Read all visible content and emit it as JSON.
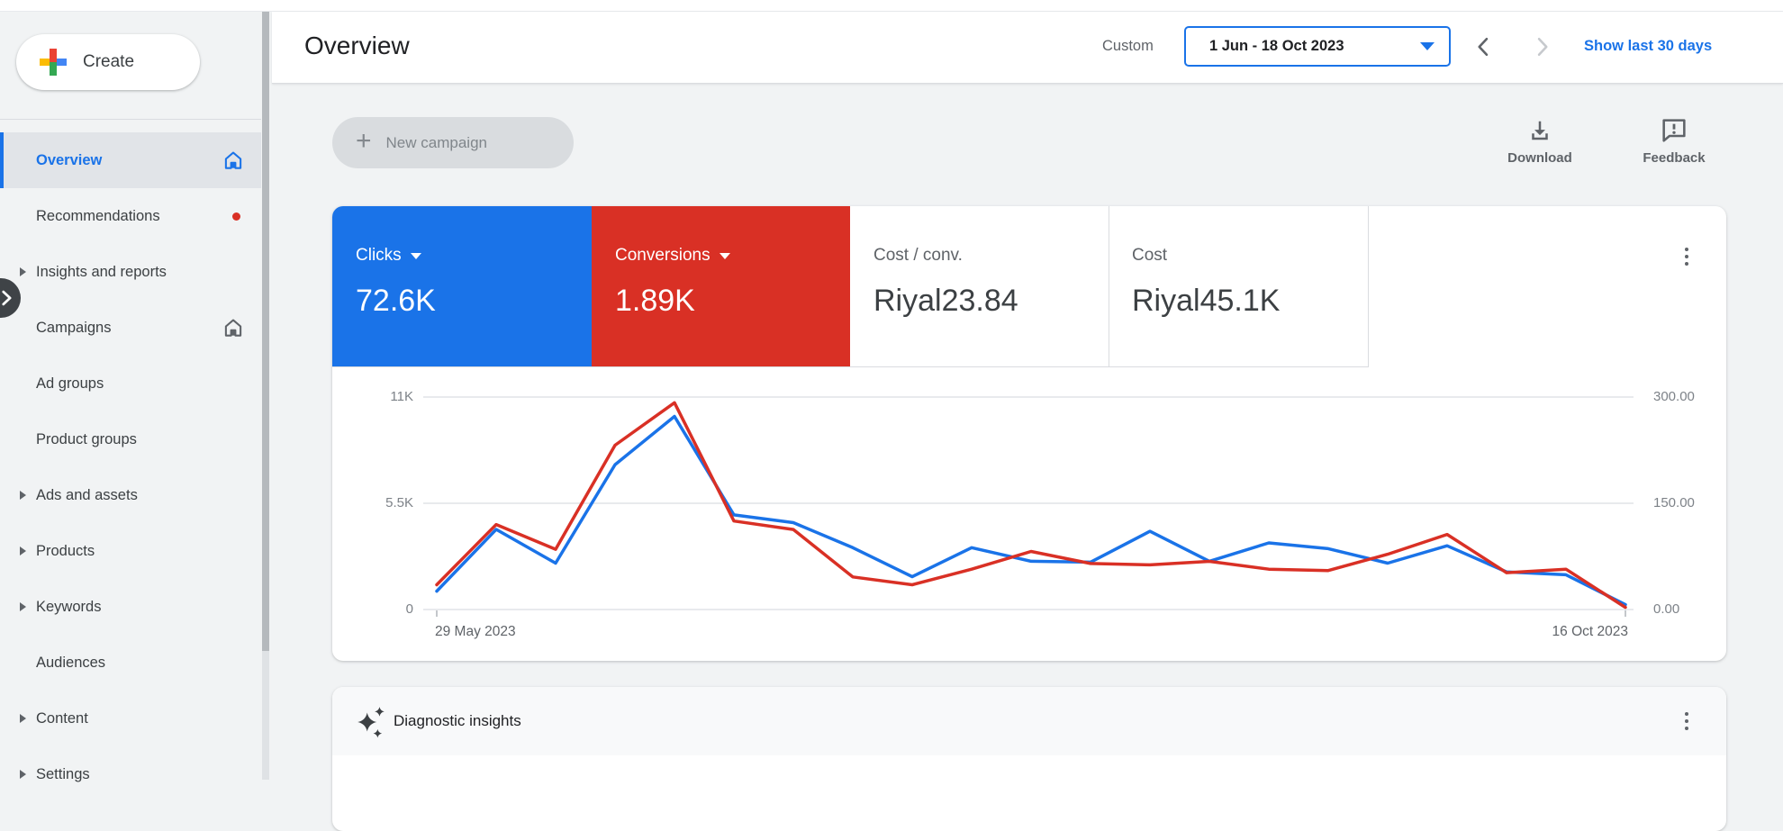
{
  "colors": {
    "accent_blue": "#1a73e8",
    "red": "#d93025",
    "text_dark": "#202124",
    "text_gray": "#5f6368"
  },
  "sidebar": {
    "create_label": "Create",
    "items": [
      {
        "label": "Overview",
        "selected": true,
        "trailing": "home"
      },
      {
        "label": "Recommendations",
        "trailing": "dot"
      },
      {
        "label": "Insights and reports",
        "expandable": true
      },
      {
        "label": "Campaigns",
        "trailing": "home-outline"
      },
      {
        "label": "Ad groups"
      },
      {
        "label": "Product groups"
      },
      {
        "label": "Ads and assets",
        "expandable": true
      },
      {
        "label": "Products",
        "expandable": true
      },
      {
        "label": "Keywords",
        "expandable": true
      },
      {
        "label": "Audiences"
      },
      {
        "label": "Content",
        "expandable": true
      },
      {
        "label": "Settings",
        "expandable": true
      }
    ]
  },
  "header": {
    "title": "Overview",
    "range_label": "Custom",
    "date_range": "1 Jun - 18 Oct 2023",
    "show_last": "Show last 30 days"
  },
  "toolbar": {
    "new_campaign": "New campaign",
    "download": "Download",
    "feedback": "Feedback"
  },
  "scorecards": [
    {
      "label": "Clicks",
      "value": "72.6K",
      "bg": "#1a73e8",
      "dropdown": true
    },
    {
      "label": "Conversions",
      "value": "1.89K",
      "bg": "#d93025",
      "dropdown": true
    },
    {
      "label": "Cost / conv.",
      "value": "Riyal23.84",
      "bg": "#ffffff"
    },
    {
      "label": "Cost",
      "value": "Riyal45.1K",
      "bg": "#ffffff"
    }
  ],
  "chart_data": {
    "type": "line",
    "x": [
      "29 May 2023",
      "5 Jun 2023",
      "12 Jun 2023",
      "19 Jun 2023",
      "26 Jun 2023",
      "3 Jul 2023",
      "10 Jul 2023",
      "17 Jul 2023",
      "24 Jul 2023",
      "31 Jul 2023",
      "7 Aug 2023",
      "14 Aug 2023",
      "21 Aug 2023",
      "28 Aug 2023",
      "4 Sep 2023",
      "11 Sep 2023",
      "18 Sep 2023",
      "25 Sep 2023",
      "2 Oct 2023",
      "9 Oct 2023",
      "16 Oct 2023"
    ],
    "series": [
      {
        "name": "Clicks",
        "color": "#1a73e8",
        "axis": "left",
        "values": [
          950,
          4150,
          2400,
          7500,
          10000,
          4900,
          4500,
          3200,
          1700,
          3200,
          2500,
          2450,
          4050,
          2500,
          3450,
          3150,
          2400,
          3300,
          1950,
          1800,
          250
        ]
      },
      {
        "name": "Conversions",
        "color": "#d93025",
        "axis": "right",
        "values": [
          35,
          120,
          85,
          232,
          292,
          125,
          113,
          46,
          35,
          57,
          82,
          65,
          63,
          68,
          57,
          55,
          78,
          106,
          52,
          57,
          3
        ]
      }
    ],
    "left_axis": {
      "ticks": [
        "11K",
        "5.5K",
        "0"
      ],
      "max": 11000,
      "min": 0
    },
    "right_axis": {
      "ticks": [
        "300.00",
        "150.00",
        "0.00"
      ],
      "max": 300,
      "min": 0
    },
    "x_labels": [
      "29 May 2023",
      "16 Oct 2023"
    ],
    "grid": true,
    "legend": "none"
  },
  "insights": {
    "title": "Diagnostic insights"
  }
}
